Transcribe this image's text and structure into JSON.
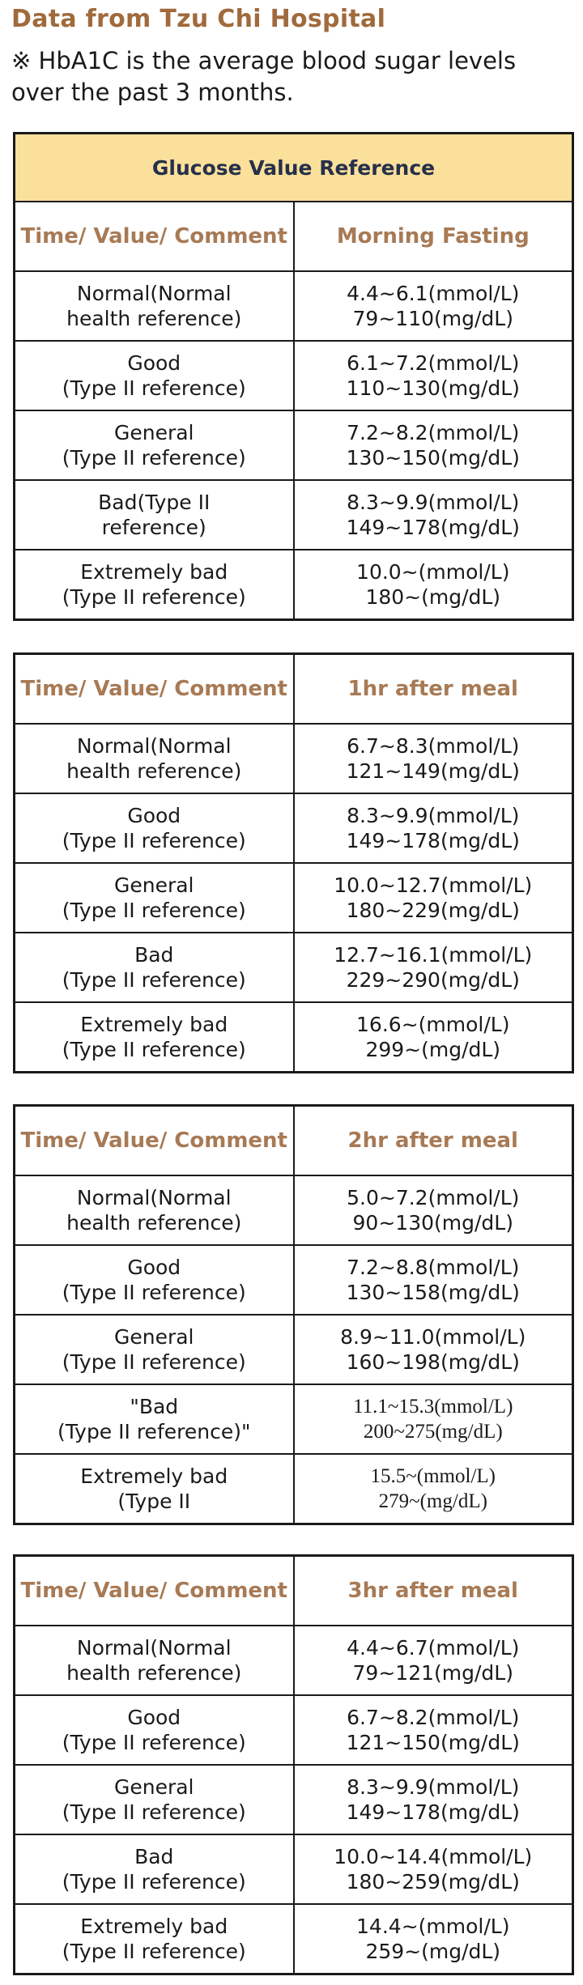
{
  "title": "Data from Tzu Chi Hospital",
  "note": "※ HbA1C is the average blood sugar levels over the past 3 months.",
  "tables": [
    {
      "caption": "Glucose Value Reference",
      "header": [
        "Time/ Value/ Comment",
        "Morning Fasting"
      ],
      "rows": [
        {
          "label": [
            "Normal(Normal",
            "health reference)"
          ],
          "value": [
            "4.4~6.1(mmol/L)",
            "79~110(mg/dL)"
          ]
        },
        {
          "label": [
            "Good",
            "(Type II reference)"
          ],
          "value": [
            "6.1~7.2(mmol/L)",
            "110~130(mg/dL)"
          ]
        },
        {
          "label": [
            "General",
            "(Type II reference)"
          ],
          "value": [
            "7.2~8.2(mmol/L)",
            "130~150(mg/dL)"
          ]
        },
        {
          "label": [
            "Bad(Type II",
            "reference)"
          ],
          "value": [
            "8.3~9.9(mmol/L)",
            "149~178(mg/dL)"
          ]
        },
        {
          "label": [
            "Extremely bad",
            "(Type II reference)"
          ],
          "value": [
            "10.0~(mmol/L)",
            "180~(mg/dL)"
          ]
        }
      ]
    },
    {
      "header": [
        "Time/ Value/ Comment",
        "1hr after meal"
      ],
      "rows": [
        {
          "label": [
            "Normal(Normal",
            "health reference)"
          ],
          "value": [
            "6.7~8.3(mmol/L)",
            "121~149(mg/dL)"
          ]
        },
        {
          "label": [
            "Good",
            "(Type II reference)"
          ],
          "value": [
            "8.3~9.9(mmol/L)",
            "149~178(mg/dL)"
          ]
        },
        {
          "label": [
            "General",
            "(Type II reference)"
          ],
          "value": [
            "10.0~12.7(mmol/L)",
            "180~229(mg/dL)"
          ]
        },
        {
          "label": [
            "Bad",
            "(Type II reference)"
          ],
          "value": [
            "12.7~16.1(mmol/L)",
            "229~290(mg/dL)"
          ]
        },
        {
          "label": [
            "Extremely bad",
            "(Type II reference)"
          ],
          "value": [
            "16.6~(mmol/L)",
            "299~(mg/dL)"
          ]
        }
      ]
    },
    {
      "header": [
        "Time/ Value/ Comment",
        "2hr after meal"
      ],
      "rows": [
        {
          "label": [
            "Normal(Normal",
            "health reference)"
          ],
          "value": [
            "5.0~7.2(mmol/L)",
            "90~130(mg/dL)"
          ]
        },
        {
          "label": [
            "Good",
            "(Type II reference)"
          ],
          "value": [
            "7.2~8.8(mmol/L)",
            "130~158(mg/dL)"
          ]
        },
        {
          "label": [
            "General",
            "(Type II reference)"
          ],
          "value": [
            "8.9~11.0(mmol/L)",
            "160~198(mg/dL)"
          ]
        },
        {
          "label": [
            "\"Bad",
            "(Type II reference)\""
          ],
          "value": [
            "11.1~15.3(mmol/L)",
            "200~275(mg/dL)"
          ]
        },
        {
          "label": [
            "Extremely bad",
            "(Type II"
          ],
          "value": [
            "15.5~(mmol/L)",
            "279~(mg/dL)"
          ]
        }
      ]
    },
    {
      "header": [
        "Time/ Value/ Comment",
        "3hr after meal"
      ],
      "rows": [
        {
          "label": [
            "Normal(Normal",
            "health reference)"
          ],
          "value": [
            "4.4~6.7(mmol/L)",
            "79~121(mg/dL)"
          ]
        },
        {
          "label": [
            "Good",
            "(Type II reference)"
          ],
          "value": [
            "6.7~8.2(mmol/L)",
            "121~150(mg/dL)"
          ]
        },
        {
          "label": [
            "General",
            "(Type II reference)"
          ],
          "value": [
            "8.3~9.9(mmol/L)",
            "149~178(mg/dL)"
          ]
        },
        {
          "label": [
            "Bad",
            "(Type II reference)"
          ],
          "value": [
            "10.0~14.4(mmol/L)",
            "180~259(mg/dL)"
          ]
        },
        {
          "label": [
            "Extremely bad",
            "(Type II reference)"
          ],
          "value": [
            "14.4~(mmol/L)",
            "259~(mg/dL)"
          ]
        }
      ]
    }
  ],
  "colors": {
    "title": "#a06a3c",
    "header_text": "#a77a55",
    "caption_bg": "#fbe09b",
    "caption_text": "#27304a",
    "border": "#1a1a1a"
  }
}
